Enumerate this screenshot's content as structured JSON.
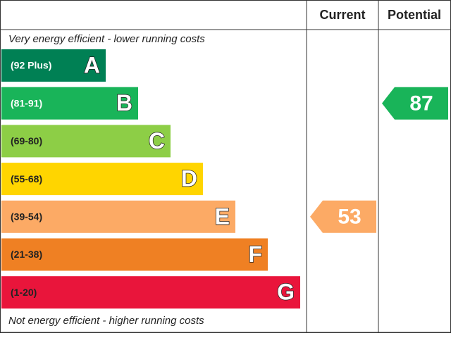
{
  "chart_data": {
    "type": "epc",
    "headers": [
      "Current",
      "Potential"
    ],
    "top_note": "Very energy efficient - lower running costs",
    "bottom_note": "Not energy efficient - higher running costs",
    "bands": [
      {
        "label": "(92 Plus)",
        "letter": "A",
        "color": "#008054",
        "label_color": "#ffffff"
      },
      {
        "label": "(81-91)",
        "letter": "B",
        "color": "#19b459",
        "label_color": "#ffffff"
      },
      {
        "label": "(69-80)",
        "letter": "C",
        "color": "#8dce46",
        "label_color": "#222222"
      },
      {
        "label": "(55-68)",
        "letter": "D",
        "color": "#ffd500",
        "label_color": "#222222"
      },
      {
        "label": "(39-54)",
        "letter": "E",
        "color": "#fcaa65",
        "label_color": "#222222"
      },
      {
        "label": "(21-38)",
        "letter": "F",
        "color": "#ef8023",
        "label_color": "#222222"
      },
      {
        "label": "(1-20)",
        "letter": "G",
        "color": "#e9153b",
        "label_color": "#222222"
      }
    ],
    "ratings": [
      {
        "value": 53,
        "color": "#fcaa65"
      },
      {
        "value": 87,
        "color": "#19b459"
      }
    ]
  }
}
